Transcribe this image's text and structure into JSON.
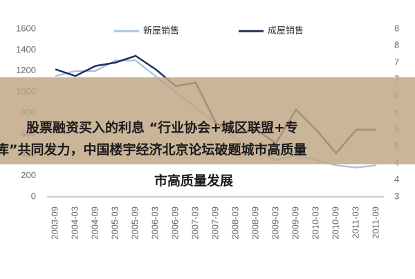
{
  "chart_data": {
    "type": "line",
    "categories": [
      "2003-09",
      "2004-03",
      "2004-09",
      "2005-03",
      "2005-09",
      "2006-03",
      "2006-09",
      "2007-03",
      "2007-09",
      "2008-03",
      "2008-09",
      "2009-03",
      "2009-09",
      "2010-03",
      "2010-09",
      "2011-03",
      "2011-09"
    ],
    "series": [
      {
        "name": "新屋销售",
        "color": "#a9c4e0",
        "values": [
          1150,
          1200,
          1200,
          1300,
          1300,
          1150,
          1000,
          850,
          700,
          550,
          450,
          350,
          400,
          350,
          300,
          280,
          300
        ]
      },
      {
        "name": "成屋销售",
        "color": "#1f2f5a",
        "axis": "y2",
        "values": [
          6.8,
          6.6,
          6.9,
          7.0,
          7.2,
          6.8,
          6.3,
          6.4,
          5.2,
          4.9,
          5.0,
          4.6,
          5.6,
          5.0,
          4.3,
          5.0,
          5.0
        ]
      }
    ],
    "ylim": [
      0,
      1600
    ],
    "yticks": [
      0,
      200,
      400,
      600,
      800,
      1000,
      1200,
      1400,
      1600
    ],
    "y2lim": [
      3,
      8
    ],
    "y2ticks": [
      3,
      {
        "value": 3.5,
        "label": "4"
      },
      4,
      {
        "value": 4.5,
        "label": "5"
      },
      5,
      {
        "value": 5.5,
        "label": "6"
      },
      6,
      {
        "value": 6.5,
        "label": "7"
      },
      7,
      {
        "value": 7.5,
        "label": "8"
      },
      8
    ]
  },
  "overlay": {
    "lines": [
      "股票融资买入的利息 “行业协会+城区联盟+专",
      "库”共同发力，中国楼宇经济北京论坛破题城市高质量",
      "市高质量发展"
    ]
  }
}
